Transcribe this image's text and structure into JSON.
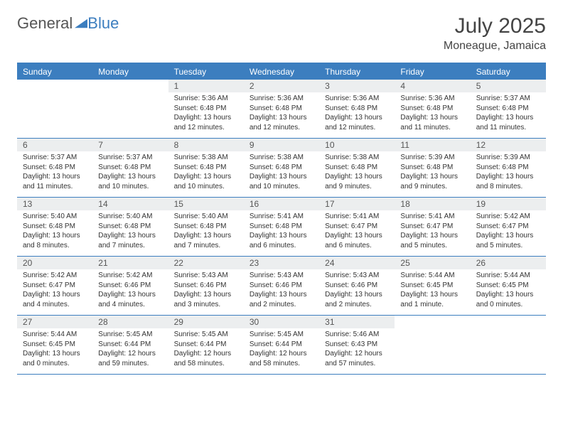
{
  "logo": {
    "part1": "General",
    "part2": "Blue"
  },
  "header": {
    "title": "July 2025",
    "subtitle": "Moneague, Jamaica"
  },
  "colors": {
    "accent": "#3c7ebf",
    "daynum_bg": "#eceeef",
    "text": "#333333",
    "header_text": "#ffffff"
  },
  "daynames": [
    "Sunday",
    "Monday",
    "Tuesday",
    "Wednesday",
    "Thursday",
    "Friday",
    "Saturday"
  ],
  "weeks": [
    [
      null,
      null,
      {
        "n": "1",
        "sr": "5:36 AM",
        "ss": "6:48 PM",
        "dl": "13 hours and 12 minutes."
      },
      {
        "n": "2",
        "sr": "5:36 AM",
        "ss": "6:48 PM",
        "dl": "13 hours and 12 minutes."
      },
      {
        "n": "3",
        "sr": "5:36 AM",
        "ss": "6:48 PM",
        "dl": "13 hours and 12 minutes."
      },
      {
        "n": "4",
        "sr": "5:36 AM",
        "ss": "6:48 PM",
        "dl": "13 hours and 11 minutes."
      },
      {
        "n": "5",
        "sr": "5:37 AM",
        "ss": "6:48 PM",
        "dl": "13 hours and 11 minutes."
      }
    ],
    [
      {
        "n": "6",
        "sr": "5:37 AM",
        "ss": "6:48 PM",
        "dl": "13 hours and 11 minutes."
      },
      {
        "n": "7",
        "sr": "5:37 AM",
        "ss": "6:48 PM",
        "dl": "13 hours and 10 minutes."
      },
      {
        "n": "8",
        "sr": "5:38 AM",
        "ss": "6:48 PM",
        "dl": "13 hours and 10 minutes."
      },
      {
        "n": "9",
        "sr": "5:38 AM",
        "ss": "6:48 PM",
        "dl": "13 hours and 10 minutes."
      },
      {
        "n": "10",
        "sr": "5:38 AM",
        "ss": "6:48 PM",
        "dl": "13 hours and 9 minutes."
      },
      {
        "n": "11",
        "sr": "5:39 AM",
        "ss": "6:48 PM",
        "dl": "13 hours and 9 minutes."
      },
      {
        "n": "12",
        "sr": "5:39 AM",
        "ss": "6:48 PM",
        "dl": "13 hours and 8 minutes."
      }
    ],
    [
      {
        "n": "13",
        "sr": "5:40 AM",
        "ss": "6:48 PM",
        "dl": "13 hours and 8 minutes."
      },
      {
        "n": "14",
        "sr": "5:40 AM",
        "ss": "6:48 PM",
        "dl": "13 hours and 7 minutes."
      },
      {
        "n": "15",
        "sr": "5:40 AM",
        "ss": "6:48 PM",
        "dl": "13 hours and 7 minutes."
      },
      {
        "n": "16",
        "sr": "5:41 AM",
        "ss": "6:48 PM",
        "dl": "13 hours and 6 minutes."
      },
      {
        "n": "17",
        "sr": "5:41 AM",
        "ss": "6:47 PM",
        "dl": "13 hours and 6 minutes."
      },
      {
        "n": "18",
        "sr": "5:41 AM",
        "ss": "6:47 PM",
        "dl": "13 hours and 5 minutes."
      },
      {
        "n": "19",
        "sr": "5:42 AM",
        "ss": "6:47 PM",
        "dl": "13 hours and 5 minutes."
      }
    ],
    [
      {
        "n": "20",
        "sr": "5:42 AM",
        "ss": "6:47 PM",
        "dl": "13 hours and 4 minutes."
      },
      {
        "n": "21",
        "sr": "5:42 AM",
        "ss": "6:46 PM",
        "dl": "13 hours and 4 minutes."
      },
      {
        "n": "22",
        "sr": "5:43 AM",
        "ss": "6:46 PM",
        "dl": "13 hours and 3 minutes."
      },
      {
        "n": "23",
        "sr": "5:43 AM",
        "ss": "6:46 PM",
        "dl": "13 hours and 2 minutes."
      },
      {
        "n": "24",
        "sr": "5:43 AM",
        "ss": "6:46 PM",
        "dl": "13 hours and 2 minutes."
      },
      {
        "n": "25",
        "sr": "5:44 AM",
        "ss": "6:45 PM",
        "dl": "13 hours and 1 minute."
      },
      {
        "n": "26",
        "sr": "5:44 AM",
        "ss": "6:45 PM",
        "dl": "13 hours and 0 minutes."
      }
    ],
    [
      {
        "n": "27",
        "sr": "5:44 AM",
        "ss": "6:45 PM",
        "dl": "13 hours and 0 minutes."
      },
      {
        "n": "28",
        "sr": "5:45 AM",
        "ss": "6:44 PM",
        "dl": "12 hours and 59 minutes."
      },
      {
        "n": "29",
        "sr": "5:45 AM",
        "ss": "6:44 PM",
        "dl": "12 hours and 58 minutes."
      },
      {
        "n": "30",
        "sr": "5:45 AM",
        "ss": "6:44 PM",
        "dl": "12 hours and 58 minutes."
      },
      {
        "n": "31",
        "sr": "5:46 AM",
        "ss": "6:43 PM",
        "dl": "12 hours and 57 minutes."
      },
      null,
      null
    ]
  ],
  "labels": {
    "sunrise": "Sunrise:",
    "sunset": "Sunset:",
    "daylight": "Daylight:"
  }
}
